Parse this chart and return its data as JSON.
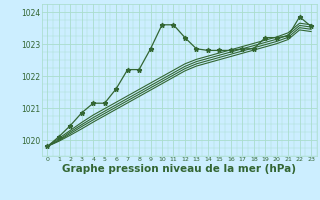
{
  "x": [
    0,
    1,
    2,
    3,
    4,
    5,
    6,
    7,
    8,
    9,
    10,
    11,
    12,
    13,
    14,
    15,
    16,
    17,
    18,
    19,
    20,
    21,
    22,
    23
  ],
  "zigzag_line": [
    1019.8,
    1020.1,
    1020.45,
    1020.85,
    1021.15,
    1021.15,
    1021.6,
    1022.2,
    1022.2,
    1022.85,
    1023.6,
    1023.6,
    1023.2,
    1022.85,
    1022.8,
    1022.8,
    1022.8,
    1022.85,
    1022.85,
    1023.2,
    1023.2,
    1023.25,
    1023.85,
    1023.55
  ],
  "straight1": [
    1019.8,
    1020.05,
    1020.3,
    1020.55,
    1020.78,
    1020.98,
    1021.18,
    1021.38,
    1021.58,
    1021.78,
    1021.98,
    1022.18,
    1022.38,
    1022.52,
    1022.62,
    1022.72,
    1022.82,
    1022.92,
    1023.02,
    1023.12,
    1023.22,
    1023.35,
    1023.65,
    1023.6
  ],
  "straight2": [
    1019.8,
    1020.0,
    1020.25,
    1020.48,
    1020.7,
    1020.9,
    1021.1,
    1021.3,
    1021.5,
    1021.7,
    1021.9,
    1022.1,
    1022.3,
    1022.45,
    1022.55,
    1022.65,
    1022.75,
    1022.85,
    1022.95,
    1023.05,
    1023.15,
    1023.28,
    1023.58,
    1023.53
  ],
  "straight3": [
    1019.8,
    1019.98,
    1020.2,
    1020.42,
    1020.63,
    1020.83,
    1021.03,
    1021.23,
    1021.43,
    1021.63,
    1021.83,
    1022.03,
    1022.23,
    1022.38,
    1022.48,
    1022.58,
    1022.68,
    1022.78,
    1022.88,
    1022.98,
    1023.08,
    1023.21,
    1023.51,
    1023.46
  ],
  "straight4": [
    1019.8,
    1019.96,
    1020.15,
    1020.35,
    1020.56,
    1020.76,
    1020.96,
    1021.16,
    1021.36,
    1021.56,
    1021.76,
    1021.96,
    1022.16,
    1022.31,
    1022.41,
    1022.51,
    1022.61,
    1022.71,
    1022.81,
    1022.91,
    1023.01,
    1023.14,
    1023.44,
    1023.39
  ],
  "bg_color": "#cceeff",
  "grid_color": "#aaddcc",
  "line_color": "#336633",
  "text_color": "#336633",
  "ylim": [
    1019.5,
    1024.25
  ],
  "yticks": [
    1020,
    1021,
    1022,
    1023,
    1024
  ],
  "xlabel": "Graphe pression niveau de la mer (hPa)",
  "xlabel_fontsize": 7.5
}
